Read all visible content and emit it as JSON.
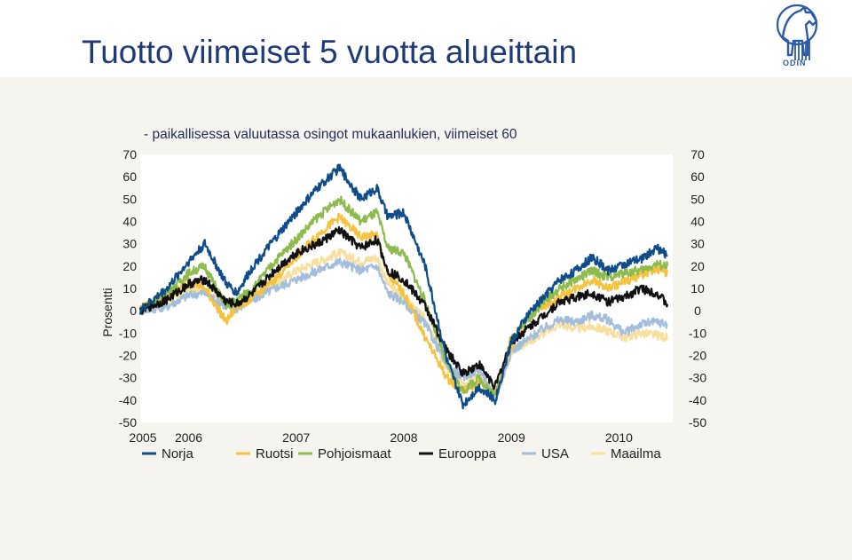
{
  "slide": {
    "title": "Tuotto viimeiset 5 vuotta alueittain",
    "logo_text": "ODIN"
  },
  "colors": {
    "Norja": "#0f4c8a",
    "Ruotsi": "#f6c13d",
    "Pohjoismaat": "#8dbb4d",
    "Eurooppa": "#111111",
    "USA": "#a3bedc",
    "Maailma": "#f9df9e",
    "title": "#1f3a78",
    "panel": "#f5f4ee"
  },
  "chart_data": {
    "type": "line",
    "title": "- paikallisessa valuutassa osingot mukaanlukien, viimeiset 60",
    "ylabel": "Prosentti",
    "ylim": [
      -50,
      70
    ],
    "yticks": [
      "70",
      "60",
      "50",
      "40",
      "30",
      "20",
      "10",
      "0",
      "-10",
      "-20",
      "-30",
      "-40",
      "-50"
    ],
    "right_yticks": [
      "70",
      "60",
      "50",
      "40",
      "30",
      "20",
      "10",
      "0",
      "-10",
      "-20",
      "-30",
      "-40",
      "-50"
    ],
    "xlim": [
      2005.55,
      2010.5
    ],
    "xticks": [
      {
        "label": "2005",
        "x": 2005.55
      },
      {
        "label": "2006",
        "x": 2006.0
      },
      {
        "label": "2007",
        "x": 2007.0
      },
      {
        "label": "2008",
        "x": 2008.0
      },
      {
        "label": "2009",
        "x": 2009.0
      },
      {
        "label": "2010",
        "x": 2010.0
      }
    ],
    "legend_position": "bottom",
    "x": [
      2005.55,
      2005.8,
      2006.0,
      2006.15,
      2006.35,
      2006.45,
      2006.6,
      2006.8,
      2007.0,
      2007.2,
      2007.4,
      2007.6,
      2007.75,
      2007.85,
      2008.0,
      2008.2,
      2008.4,
      2008.55,
      2008.7,
      2008.85,
      2009.0,
      2009.15,
      2009.3,
      2009.45,
      2009.6,
      2009.75,
      2009.9,
      2010.05,
      2010.2,
      2010.35,
      2010.45
    ],
    "series": [
      {
        "name": "Norja",
        "values": [
          0,
          10,
          22,
          30,
          12,
          8,
          20,
          32,
          44,
          55,
          64,
          50,
          55,
          42,
          44,
          20,
          -22,
          -42,
          -34,
          -40,
          -14,
          -2,
          6,
          14,
          18,
          24,
          18,
          21,
          23,
          28,
          25
        ]
      },
      {
        "name": "Ruotsi",
        "values": [
          1,
          6,
          14,
          10,
          -5,
          2,
          6,
          14,
          24,
          34,
          42,
          33,
          34,
          16,
          8,
          -12,
          -30,
          -36,
          -32,
          -37,
          -16,
          -3,
          2,
          6,
          10,
          14,
          10,
          13,
          16,
          19,
          17
        ]
      },
      {
        "name": "Pohjoismaat",
        "values": [
          1,
          8,
          17,
          20,
          2,
          5,
          10,
          22,
          32,
          42,
          50,
          40,
          44,
          28,
          26,
          4,
          -24,
          -36,
          -30,
          -38,
          -12,
          -4,
          4,
          10,
          14,
          18,
          15,
          17,
          18,
          21,
          20
        ]
      },
      {
        "name": "Eurooppa",
        "values": [
          0,
          5,
          12,
          14,
          4,
          3,
          8,
          18,
          26,
          30,
          36,
          28,
          32,
          18,
          14,
          2,
          -18,
          -28,
          -24,
          -34,
          -14,
          -8,
          -2,
          4,
          6,
          8,
          4,
          6,
          10,
          8,
          3
        ]
      },
      {
        "name": "USA",
        "values": [
          0,
          2,
          7,
          8,
          2,
          1,
          5,
          10,
          14,
          18,
          22,
          18,
          20,
          8,
          4,
          -6,
          -24,
          -30,
          -26,
          -40,
          -18,
          -13,
          -8,
          -4,
          -5,
          -2,
          -4,
          -10,
          -6,
          -5,
          -6
        ]
      },
      {
        "name": "Maailma",
        "values": [
          0,
          3,
          9,
          10,
          3,
          3,
          7,
          12,
          18,
          22,
          26,
          22,
          24,
          12,
          6,
          -4,
          -26,
          -32,
          -28,
          -38,
          -18,
          -14,
          -10,
          -6,
          -8,
          -7,
          -9,
          -12,
          -10,
          -11,
          -12
        ]
      }
    ]
  }
}
